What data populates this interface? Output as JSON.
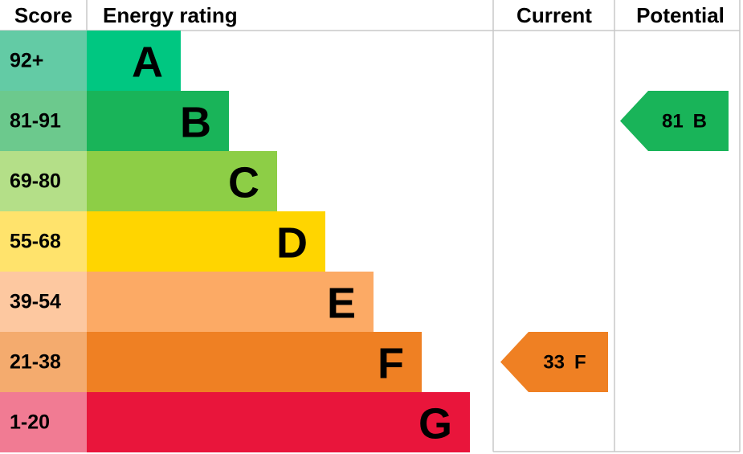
{
  "headers": {
    "score": "Score",
    "rating": "Energy rating",
    "current": "Current",
    "potential": "Potential"
  },
  "bands": [
    {
      "score": "92+",
      "letter": "A",
      "color": "#00c781",
      "score_color": "#63cba5"
    },
    {
      "score": "81-91",
      "letter": "B",
      "color": "#19b459",
      "score_color": "#6cc98d"
    },
    {
      "score": "69-80",
      "letter": "C",
      "color": "#8dce46",
      "score_color": "#b4df88"
    },
    {
      "score": "55-68",
      "letter": "D",
      "color": "#ffd500",
      "score_color": "#ffe36c"
    },
    {
      "score": "39-54",
      "letter": "E",
      "color": "#fcaa65",
      "score_color": "#fdc8a0"
    },
    {
      "score": "21-38",
      "letter": "F",
      "color": "#ef8023",
      "score_color": "#f4ab6e"
    },
    {
      "score": "1-20",
      "letter": "G",
      "color": "#e9153b",
      "score_color": "#f17b93"
    }
  ],
  "current": {
    "value": 33,
    "letter": "F"
  },
  "potential": {
    "value": 81,
    "letter": "B"
  }
}
